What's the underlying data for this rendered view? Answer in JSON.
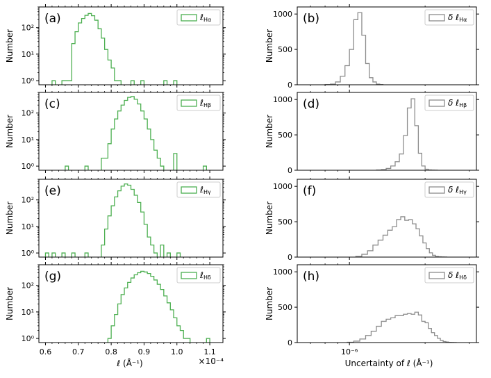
{
  "figure": {
    "left_xlabel": "ℓ  (Å⁻¹)",
    "left_offset_text": "×10⁻⁴",
    "right_xlabel": "Uncertainty of ℓ  (Å⁻¹)",
    "ylabel": "Number",
    "colors": {
      "green": "#4caf50",
      "gray": "#8c8c8c"
    }
  },
  "chart_data": [
    {
      "type": "histogram",
      "panel": "(a)",
      "legend": "ℓHα",
      "legend_sub": "Hα",
      "color": "#4caf50",
      "yscale": "log",
      "ylim": [
        0.7,
        600
      ],
      "yticks": [
        1,
        10,
        100
      ],
      "ytick_labels": [
        "10⁰",
        "10¹",
        "10²"
      ],
      "xlim": [
        0.58,
        1.14
      ],
      "xticks": [
        0.6,
        0.7,
        0.8,
        0.9,
        1.0,
        1.1
      ],
      "xtick_labels": [
        "0.6",
        "0.7",
        "0.8",
        "0.9",
        "1.0",
        "1.1"
      ],
      "bin_edges": [
        0.65,
        0.68,
        0.69,
        0.7,
        0.71,
        0.72,
        0.73,
        0.74,
        0.75,
        0.76,
        0.77,
        0.78,
        0.79,
        0.8,
        0.81,
        0.82,
        0.83
      ],
      "counts": [
        1,
        25,
        70,
        150,
        220,
        290,
        340,
        280,
        190,
        90,
        40,
        15,
        6,
        3,
        1,
        1
      ],
      "extra_bins": [
        [
          0.62,
          0.63,
          1
        ],
        [
          0.86,
          0.87,
          1
        ],
        [
          0.89,
          0.9,
          1
        ],
        [
          0.96,
          0.97,
          1
        ],
        [
          0.99,
          1.0,
          1
        ]
      ]
    },
    {
      "type": "histogram",
      "panel": "(c)",
      "legend": "ℓHβ",
      "legend_sub": "Hβ",
      "color": "#4caf50",
      "yscale": "log",
      "ylim": [
        0.7,
        600
      ],
      "yticks": [
        1,
        10,
        100
      ],
      "ytick_labels": [
        "10⁰",
        "10¹",
        "10²"
      ],
      "xlim": [
        0.58,
        1.14
      ],
      "xticks": [
        0.6,
        0.7,
        0.8,
        0.9,
        1.0,
        1.1
      ],
      "xtick_labels": [
        "0.6",
        "0.7",
        "0.8",
        "0.9",
        "1.0",
        "1.1"
      ],
      "bin_edges": [
        0.77,
        0.79,
        0.8,
        0.81,
        0.82,
        0.83,
        0.84,
        0.85,
        0.86,
        0.87,
        0.88,
        0.89,
        0.9,
        0.91,
        0.92,
        0.93,
        0.94,
        0.95,
        0.96
      ],
      "counts": [
        2,
        7,
        25,
        60,
        120,
        200,
        300,
        390,
        420,
        330,
        220,
        120,
        60,
        25,
        10,
        4,
        2,
        1
      ],
      "extra_bins": [
        [
          0.66,
          0.67,
          1
        ],
        [
          0.72,
          0.73,
          1
        ],
        [
          0.99,
          1.0,
          3
        ],
        [
          1.08,
          1.09,
          1
        ]
      ]
    },
    {
      "type": "histogram",
      "panel": "(e)",
      "legend": "ℓHγ",
      "legend_sub": "Hγ",
      "color": "#4caf50",
      "yscale": "log",
      "ylim": [
        0.7,
        600
      ],
      "yticks": [
        1,
        10,
        100
      ],
      "ytick_labels": [
        "10⁰",
        "10¹",
        "10²"
      ],
      "xlim": [
        0.58,
        1.14
      ],
      "xticks": [
        0.6,
        0.7,
        0.8,
        0.9,
        1.0,
        1.1
      ],
      "xtick_labels": [
        "0.6",
        "0.7",
        "0.8",
        "0.9",
        "1.0",
        "1.1"
      ],
      "bin_edges": [
        0.77,
        0.78,
        0.79,
        0.8,
        0.81,
        0.82,
        0.83,
        0.84,
        0.85,
        0.86,
        0.87,
        0.88,
        0.89,
        0.9,
        0.91,
        0.92,
        0.93,
        0.94
      ],
      "counts": [
        2,
        8,
        25,
        60,
        130,
        220,
        330,
        400,
        360,
        250,
        150,
        80,
        35,
        12,
        4,
        2,
        1
      ],
      "extra_bins": [
        [
          0.6,
          0.61,
          1
        ],
        [
          0.62,
          0.63,
          1
        ],
        [
          0.65,
          0.66,
          1
        ],
        [
          0.68,
          0.69,
          1
        ],
        [
          0.72,
          0.73,
          1
        ],
        [
          0.95,
          0.96,
          2
        ],
        [
          0.97,
          0.98,
          1
        ],
        [
          1.0,
          1.01,
          1
        ]
      ]
    },
    {
      "type": "histogram",
      "panel": "(g)",
      "legend": "ℓHδ",
      "legend_sub": "Hδ",
      "color": "#4caf50",
      "yscale": "log",
      "ylim": [
        0.7,
        600
      ],
      "yticks": [
        1,
        10,
        100
      ],
      "ytick_labels": [
        "10⁰",
        "10¹",
        "10²"
      ],
      "xlim": [
        0.58,
        1.14
      ],
      "xticks": [
        0.6,
        0.7,
        0.8,
        0.9,
        1.0,
        1.1
      ],
      "xtick_labels": [
        "0.6",
        "0.7",
        "0.8",
        "0.9",
        "1.0",
        "1.1"
      ],
      "bin_edges": [
        0.79,
        0.8,
        0.81,
        0.82,
        0.83,
        0.84,
        0.85,
        0.86,
        0.87,
        0.88,
        0.89,
        0.9,
        0.91,
        0.92,
        0.93,
        0.94,
        0.95,
        0.96,
        0.97,
        0.98,
        0.99,
        1.0,
        1.01,
        1.02,
        1.03,
        1.04
      ],
      "counts": [
        1,
        3,
        8,
        20,
        45,
        80,
        130,
        190,
        250,
        300,
        340,
        320,
        280,
        220,
        160,
        110,
        70,
        40,
        22,
        12,
        6,
        3,
        2,
        1,
        1
      ],
      "extra_bins": [
        [
          1.09,
          1.1,
          1
        ]
      ]
    },
    {
      "type": "histogram",
      "panel": "(b)",
      "legend": "δ ℓHα",
      "legend_sub": "Hα",
      "color": "#8c8c8c",
      "yscale": "linear",
      "ylim": [
        0,
        1100
      ],
      "yticks": [
        0,
        500,
        1000
      ],
      "ytick_labels": [
        "0",
        "500",
        "1000"
      ],
      "xscale": "log",
      "xtick_labels": [
        "10⁻⁶"
      ],
      "bin_edges": [
        0.8,
        0.84,
        0.88,
        0.92,
        0.96,
        1.0,
        1.04,
        1.08,
        1.12,
        1.16,
        1.2,
        1.24,
        1.28,
        1.32,
        1.36
      ],
      "counts": [
        3,
        10,
        40,
        120,
        270,
        500,
        920,
        1020,
        700,
        300,
        100,
        40,
        10,
        3
      ]
    },
    {
      "type": "histogram",
      "panel": "(d)",
      "legend": "δ ℓHβ",
      "legend_sub": "Hβ",
      "color": "#8c8c8c",
      "yscale": "linear",
      "ylim": [
        0,
        1100
      ],
      "yticks": [
        0,
        500,
        1000
      ],
      "ytick_labels": [
        "0",
        "500",
        "1000"
      ],
      "xscale": "log",
      "xtick_labels": [
        "10⁻⁶"
      ],
      "bin_edges": [
        1.28,
        1.34,
        1.4,
        1.46,
        1.52,
        1.58,
        1.64,
        1.7,
        1.76,
        1.82,
        1.88,
        1.94,
        2.0,
        2.06,
        2.12,
        2.18,
        2.24
      ],
      "counts": [
        3,
        10,
        25,
        60,
        120,
        230,
        490,
        880,
        1010,
        630,
        240,
        60,
        15,
        5,
        2,
        1
      ]
    },
    {
      "type": "histogram",
      "panel": "(f)",
      "legend": "δ ℓHγ",
      "legend_sub": "Hγ",
      "color": "#8c8c8c",
      "yscale": "linear",
      "ylim": [
        0,
        1100
      ],
      "yticks": [
        0,
        500,
        1000
      ],
      "ytick_labels": [
        "0",
        "500",
        "1000"
      ],
      "xscale": "log",
      "xtick_labels": [
        "10⁻⁶"
      ],
      "bin_edges": [
        1.06,
        1.12,
        1.18,
        1.24,
        1.3,
        1.36,
        1.42,
        1.48,
        1.54,
        1.6,
        1.66,
        1.72,
        1.78,
        1.84,
        1.9,
        1.96,
        2.02,
        2.08,
        2.14,
        2.2,
        2.26,
        2.32,
        2.38,
        2.44
      ],
      "counts": [
        10,
        40,
        90,
        170,
        240,
        310,
        380,
        430,
        530,
        570,
        520,
        530,
        470,
        400,
        300,
        200,
        120,
        60,
        25,
        10,
        5,
        2,
        1
      ]
    },
    {
      "type": "histogram",
      "panel": "(h)",
      "legend": "δ ℓHδ",
      "legend_sub": "Hδ",
      "color": "#8c8c8c",
      "yscale": "linear",
      "ylim": [
        0,
        1100
      ],
      "yticks": [
        0,
        500,
        1000
      ],
      "ytick_labels": [
        "0",
        "500",
        "1000"
      ],
      "xscale": "log",
      "xtick_labels": [
        "10⁻⁶"
      ],
      "bin_edges": [
        0.98,
        1.04,
        1.1,
        1.16,
        1.22,
        1.28,
        1.34,
        1.4,
        1.46,
        1.52,
        1.58,
        1.64,
        1.7,
        1.76,
        1.82,
        1.88,
        1.94,
        2.0,
        2.06,
        2.12,
        2.18,
        2.24,
        2.3,
        2.36,
        2.42,
        2.48,
        2.54,
        2.6,
        2.66
      ],
      "counts": [
        5,
        20,
        50,
        100,
        160,
        230,
        300,
        330,
        350,
        380,
        380,
        400,
        410,
        400,
        430,
        390,
        300,
        280,
        200,
        140,
        100,
        60,
        30,
        15,
        8,
        4,
        2,
        1
      ]
    }
  ]
}
